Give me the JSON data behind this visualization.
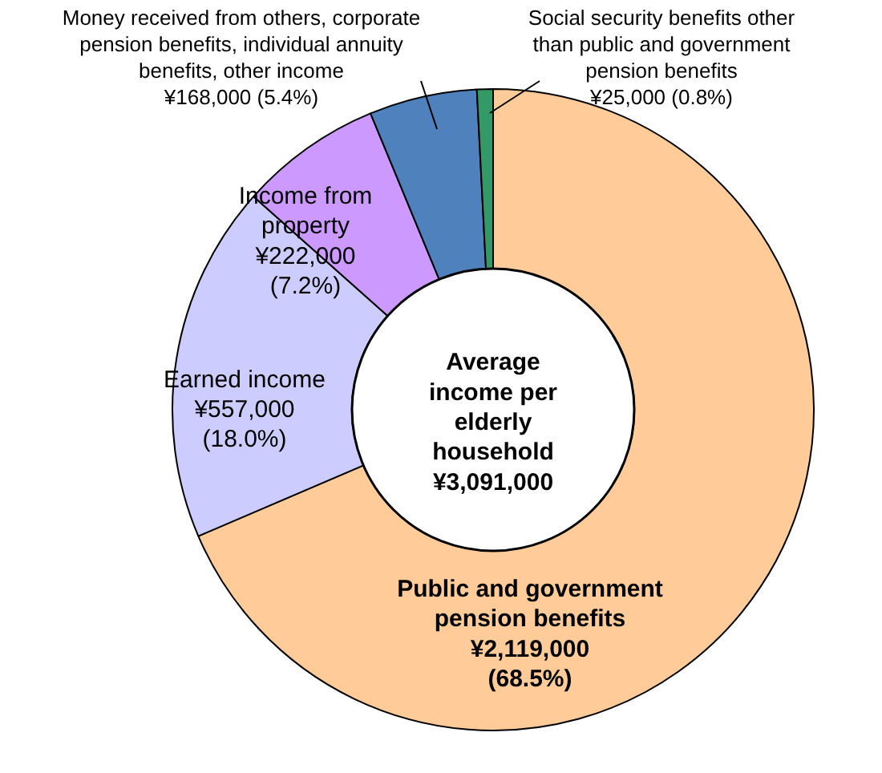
{
  "chart_data": {
    "type": "donut",
    "categories": [
      "Public and government\npension benefits",
      "Earned income",
      "Income from\nproperty",
      "Money received from others, corporate\npension benefits, individual annuity\nbenefits, other income",
      "Social security benefits other\nthan public and government\npension benefits"
    ],
    "values": [
      2119000,
      557000,
      222000,
      168000,
      25000
    ],
    "colors": [
      "#ffcc99",
      "#ccccff",
      "#cc99ff",
      "#4f81bd",
      "#339966"
    ],
    "value_labels": [
      "¥2,119,000\n(68.5%)",
      "¥557,000\n(18.0%)",
      "¥222,000\n(7.2%)",
      "¥168,000 (5.4%)",
      "¥25,000 (0.8%)"
    ],
    "annotations": [
      "Average\nincome per\nelderly\nhousehold\n¥3,091,000"
    ]
  }
}
